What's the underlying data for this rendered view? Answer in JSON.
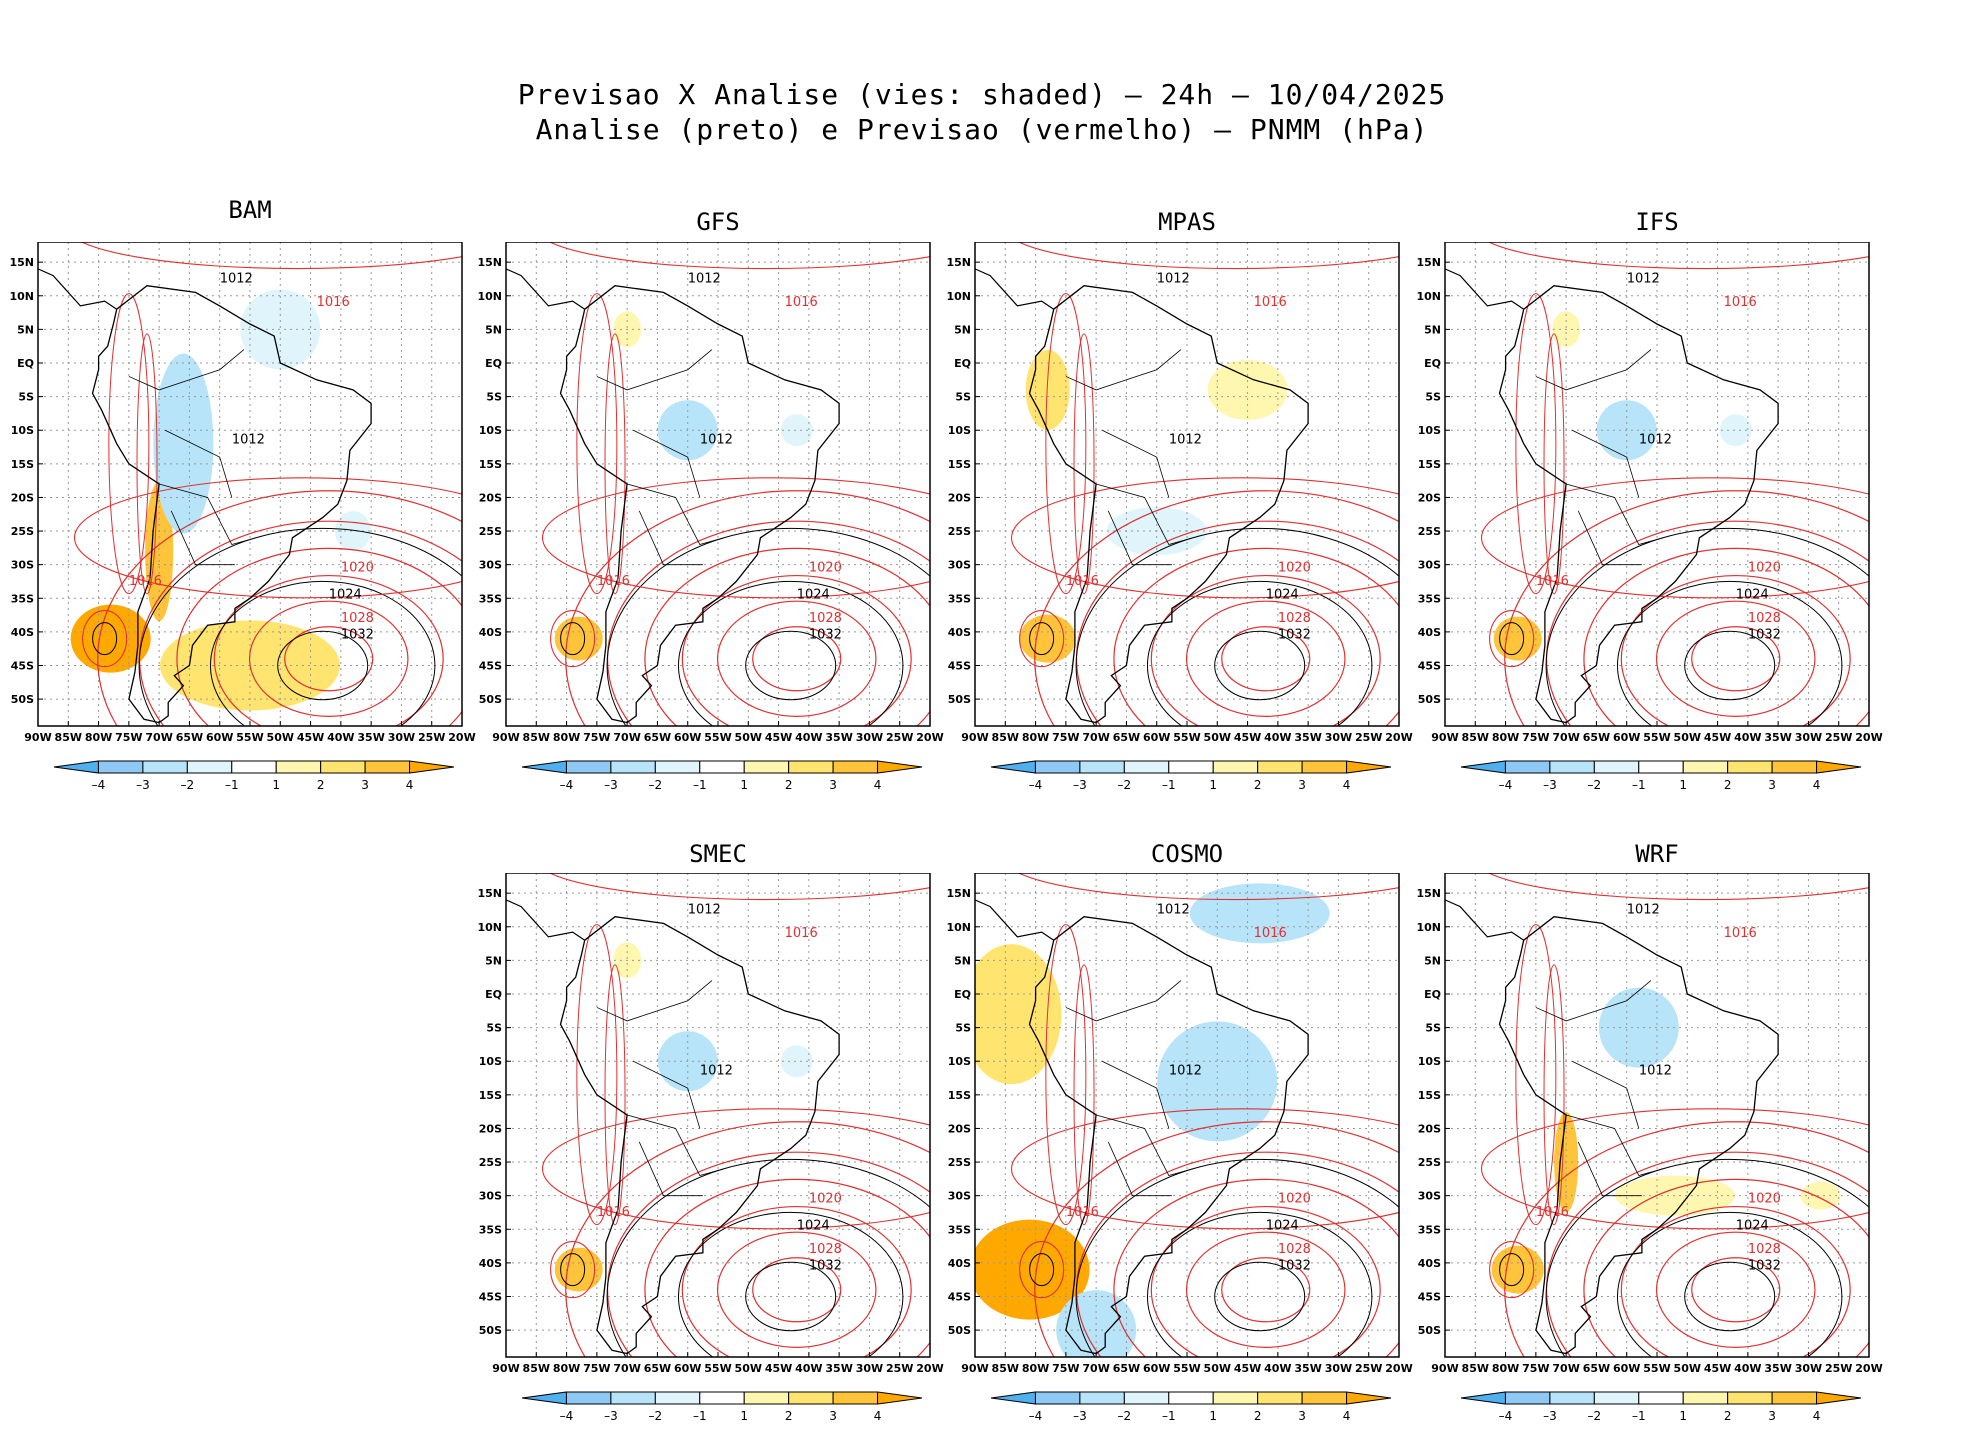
{
  "title_line1": "Previsao X Analise (vies: shaded) – 24h – 10/04/2025",
  "title_line2": "Analise (preto) e Previsao (vermelho) – PNMM (hPa)",
  "lat_labels": [
    "15N",
    "10N",
    "5N",
    "EQ",
    "5S",
    "10S",
    "15S",
    "20S",
    "25S",
    "30S",
    "35S",
    "40S",
    "45S",
    "50S"
  ],
  "lon_labels": [
    "90W",
    "85W",
    "80W",
    "75W",
    "70W",
    "65W",
    "60W",
    "55W",
    "50W",
    "45W",
    "40W",
    "35W",
    "30W",
    "25W",
    "20W"
  ],
  "colorbar": {
    "ticks": [
      "–4",
      "–3",
      "–2",
      "–1",
      "1",
      "2",
      "3",
      "4"
    ],
    "colors": [
      "#4fb0f0",
      "#8ec9f5",
      "#b7e4f8",
      "#dff5fb",
      "#ffffff",
      "#fff7b0",
      "#ffe470",
      "#ffc43a",
      "#ffa800"
    ]
  },
  "contour_labels": {
    "analysis_color": "#000000",
    "forecast_color": "#e03030",
    "levels": [
      "1012",
      "1016",
      "1020",
      "1024",
      "1028",
      "1032"
    ]
  },
  "panels": [
    {
      "id": "bam",
      "title": "BAM",
      "bias": "strong"
    },
    {
      "id": "gfs",
      "title": "GFS",
      "bias": "weak"
    },
    {
      "id": "mpas",
      "title": "MPAS",
      "bias": "warm"
    },
    {
      "id": "ifs",
      "title": "IFS",
      "bias": "weak"
    },
    {
      "id": "smec",
      "title": "SMEC",
      "bias": "weak"
    },
    {
      "id": "cosmo",
      "title": "COSMO",
      "bias": "cold"
    },
    {
      "id": "wrf",
      "title": "WRF",
      "bias": "mixed"
    }
  ]
}
